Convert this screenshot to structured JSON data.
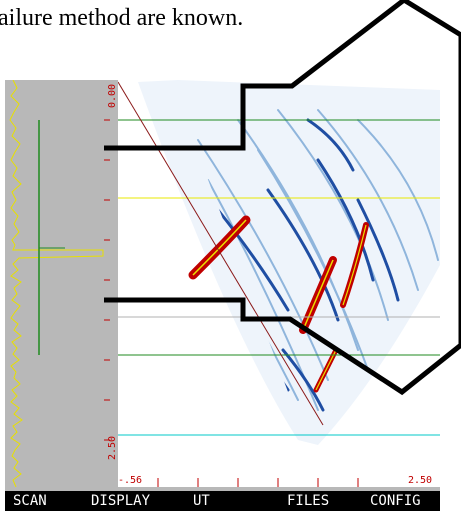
{
  "caption": {
    "text": "ailure method are known."
  },
  "scan": {
    "depth_top_label": "0.00",
    "depth_bottom_label": "2.50",
    "x_min_label": "-.56",
    "x_max_label": "2.50"
  },
  "menu": {
    "items": [
      {
        "label": "SCAN"
      },
      {
        "label": "DISPLAY"
      },
      {
        "label": "UT"
      },
      {
        "label": "FILES"
      },
      {
        "label": "CONFIG"
      }
    ]
  },
  "colors": {
    "gate_green": "#1f8a1f",
    "gate_yellow": "#e8e800",
    "gate_gray": "#b0b0b0",
    "gate_cyan": "#00c8c8",
    "beam_line": "#8b1a1a",
    "flaw_red": "#c00000",
    "amp_trace": "#e8e000"
  }
}
